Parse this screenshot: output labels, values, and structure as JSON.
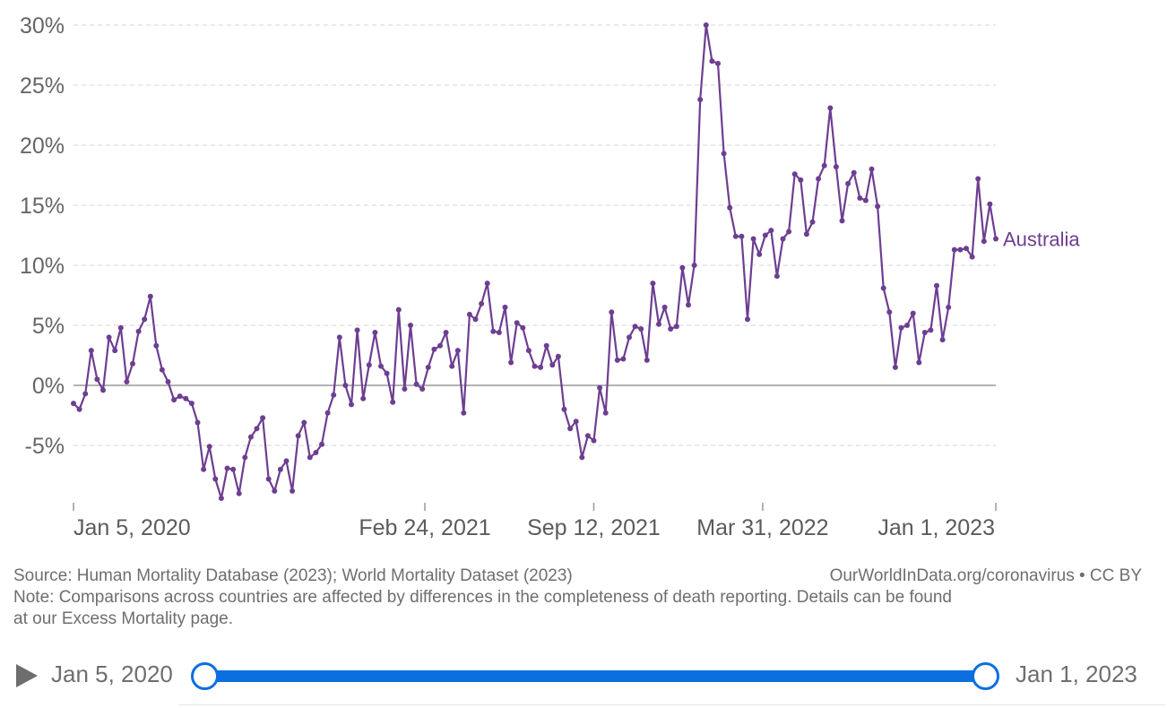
{
  "chart_data": {
    "type": "line",
    "title": "",
    "xlabel": "",
    "ylabel": "",
    "ylim": [
      -9.5,
      30.5
    ],
    "y_ticks": [
      {
        "value": 30,
        "label": "30%"
      },
      {
        "value": 25,
        "label": "25%"
      },
      {
        "value": 20,
        "label": "20%"
      },
      {
        "value": 15,
        "label": "15%"
      },
      {
        "value": 10,
        "label": "10%"
      },
      {
        "value": 5,
        "label": "5%"
      },
      {
        "value": 0,
        "label": "0%"
      },
      {
        "value": -5,
        "label": "-5%"
      }
    ],
    "x_ticks": [
      "Jan 5, 2020",
      "Feb 24, 2021",
      "Sep 12, 2021",
      "Mar 31, 2022",
      "Jan 1, 2023"
    ],
    "grid": true,
    "color": "#6d3e91",
    "series": [
      {
        "name": "Australia",
        "x_start": "2020-01-05",
        "x_step_days": 7,
        "values": [
          -1.5,
          -2.0,
          -0.7,
          2.9,
          0.5,
          -0.4,
          4.0,
          2.9,
          4.8,
          0.3,
          1.8,
          4.5,
          5.5,
          7.4,
          3.3,
          1.3,
          0.3,
          -1.2,
          -0.9,
          -1.1,
          -1.5,
          -3.1,
          -7.0,
          -5.1,
          -7.8,
          -9.4,
          -6.9,
          -7.0,
          -9.0,
          -6.0,
          -4.3,
          -3.6,
          -2.7,
          -7.8,
          -8.8,
          -7.0,
          -6.3,
          -8.8,
          -4.2,
          -3.1,
          -6.0,
          -5.6,
          -4.9,
          -2.3,
          -0.8,
          4.0,
          0.0,
          -1.6,
          4.6,
          -1.1,
          1.7,
          4.4,
          1.6,
          1.0,
          -1.4,
          6.3,
          -0.3,
          5.0,
          0.1,
          -0.3,
          1.5,
          3.0,
          3.3,
          4.4,
          1.6,
          2.9,
          -2.3,
          5.9,
          5.5,
          6.8,
          8.5,
          4.5,
          4.4,
          6.5,
          1.9,
          5.2,
          4.8,
          2.9,
          1.6,
          1.5,
          3.3,
          1.7,
          2.4,
          -2.0,
          -3.6,
          -3.0,
          -6.0,
          -4.2,
          -4.6,
          -0.2,
          -2.3,
          6.1,
          2.1,
          2.2,
          4.0,
          4.9,
          4.7,
          2.1,
          8.5,
          5.1,
          6.5,
          4.7,
          4.9,
          9.8,
          6.7,
          10.0,
          23.8,
          30.0,
          27.0,
          26.8,
          19.3,
          14.8,
          12.4,
          12.4,
          5.5,
          12.2,
          10.9,
          12.5,
          12.9,
          9.1,
          12.2,
          12.8,
          17.6,
          17.1,
          12.6,
          13.6,
          17.2,
          18.3,
          23.1,
          18.2,
          13.7,
          16.8,
          17.7,
          15.6,
          15.4,
          18.0,
          14.9,
          8.1,
          6.1,
          1.5,
          4.8,
          5.0,
          6.0,
          1.9,
          4.4,
          4.6,
          8.3,
          3.8,
          6.5,
          11.3,
          11.3,
          11.4,
          10.7,
          17.2,
          12.0,
          15.1,
          12.2
        ]
      }
    ]
  },
  "footer": {
    "source": "Source: Human Mortality Database (2023); World Mortality Dataset (2023)",
    "license": "OurWorldInData.org/coronavirus • CC BY",
    "note_line1": "Note: Comparisons across countries are affected by differences in the completeness of death reporting. Details can be found",
    "note_line2": "at our Excess Mortality page."
  },
  "timeline": {
    "start_label": "Jan 5, 2020",
    "end_label": "Jan 1, 2023",
    "accent": "#0c6fdf",
    "play_icon": "play-icon"
  }
}
